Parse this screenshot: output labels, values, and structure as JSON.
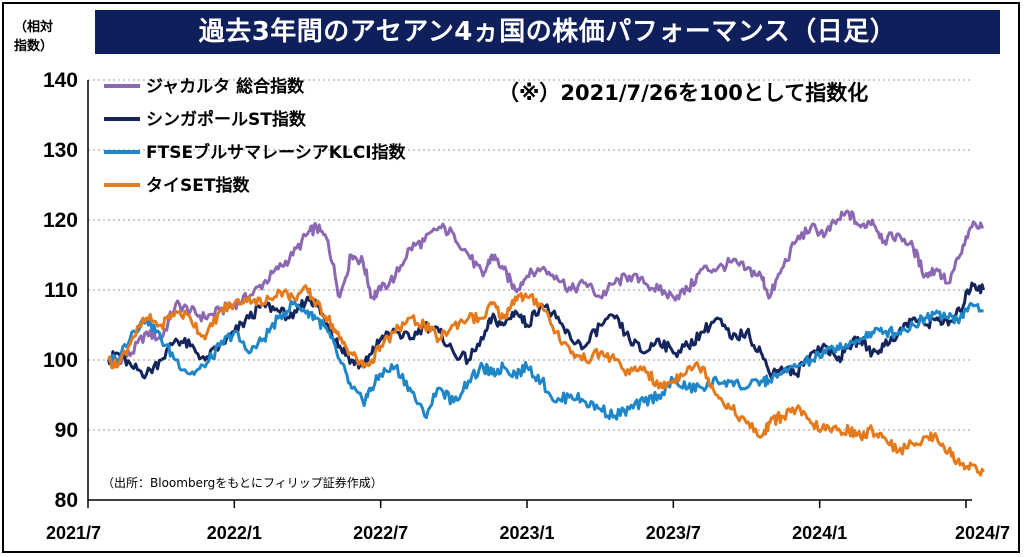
{
  "header": {
    "title": "過去3年間のアセアン4ヵ国の株価パフォーマンス（日足）",
    "unit_line1": "（相対",
    "unit_line2": "指数）",
    "note": "（※）2021/7/26を100として指数化",
    "source": "（出所：Bloombergをもとにフィリップ証券作成）"
  },
  "chart_data": {
    "type": "line",
    "title": "過去3年間のアセアン4ヵ国の株価パフォーマンス（日足）",
    "ylim": [
      80,
      140
    ],
    "yticks": [
      80,
      90,
      100,
      110,
      120,
      130,
      140
    ],
    "xlim": [
      2021.54,
      2024.58
    ],
    "xticks": [
      {
        "label": "2021/7",
        "value": 2021.5
      },
      {
        "label": "2022/1",
        "value": 2022.0
      },
      {
        "label": "2022/7",
        "value": 2022.5
      },
      {
        "label": "2023/1",
        "value": 2023.0
      },
      {
        "label": "2023/7",
        "value": 2023.5
      },
      {
        "label": "2024/1",
        "value": 2024.0
      },
      {
        "label": "2024/7",
        "value": 2024.5
      }
    ],
    "grid": "horizontal dotted",
    "legend_position": "top-left",
    "series": [
      {
        "name": "ジャカルタ 総合指数",
        "color": "#8c68b2",
        "points": [
          [
            2021.57,
            100
          ],
          [
            2021.6,
            100
          ],
          [
            2021.65,
            101
          ],
          [
            2021.7,
            104
          ],
          [
            2021.75,
            103
          ],
          [
            2021.8,
            108
          ],
          [
            2021.85,
            107
          ],
          [
            2021.9,
            106
          ],
          [
            2021.95,
            107
          ],
          [
            2022.0,
            108
          ],
          [
            2022.05,
            109
          ],
          [
            2022.1,
            111
          ],
          [
            2022.15,
            113
          ],
          [
            2022.2,
            115
          ],
          [
            2022.25,
            118
          ],
          [
            2022.28,
            119
          ],
          [
            2022.32,
            117
          ],
          [
            2022.36,
            109
          ],
          [
            2022.4,
            115
          ],
          [
            2022.44,
            114
          ],
          [
            2022.47,
            109
          ],
          [
            2022.5,
            110
          ],
          [
            2022.55,
            112
          ],
          [
            2022.6,
            116
          ],
          [
            2022.65,
            117
          ],
          [
            2022.7,
            119
          ],
          [
            2022.75,
            118
          ],
          [
            2022.8,
            115
          ],
          [
            2022.85,
            112
          ],
          [
            2022.88,
            115
          ],
          [
            2022.92,
            113
          ],
          [
            2022.96,
            110
          ],
          [
            2023.0,
            112
          ],
          [
            2023.05,
            113
          ],
          [
            2023.1,
            112
          ],
          [
            2023.15,
            110
          ],
          [
            2023.2,
            111
          ],
          [
            2023.25,
            109
          ],
          [
            2023.3,
            111
          ],
          [
            2023.35,
            112
          ],
          [
            2023.4,
            111
          ],
          [
            2023.45,
            110
          ],
          [
            2023.5,
            109
          ],
          [
            2023.55,
            110
          ],
          [
            2023.6,
            113
          ],
          [
            2023.65,
            113
          ],
          [
            2023.7,
            114
          ],
          [
            2023.75,
            113
          ],
          [
            2023.8,
            112
          ],
          [
            2023.83,
            109
          ],
          [
            2023.87,
            113
          ],
          [
            2023.92,
            117
          ],
          [
            2023.97,
            119
          ],
          [
            2024.02,
            118
          ],
          [
            2024.06,
            120
          ],
          [
            2024.1,
            121
          ],
          [
            2024.14,
            119
          ],
          [
            2024.18,
            120
          ],
          [
            2024.22,
            117
          ],
          [
            2024.27,
            118
          ],
          [
            2024.32,
            116
          ],
          [
            2024.36,
            112
          ],
          [
            2024.4,
            113
          ],
          [
            2024.44,
            111
          ],
          [
            2024.48,
            115
          ],
          [
            2024.52,
            119
          ],
          [
            2024.56,
            119
          ]
        ]
      },
      {
        "name": "シンガポールST指数",
        "color": "#14255c",
        "points": [
          [
            2021.57,
            100
          ],
          [
            2021.6,
            101
          ],
          [
            2021.65,
            99
          ],
          [
            2021.7,
            98
          ],
          [
            2021.75,
            100
          ],
          [
            2021.8,
            103
          ],
          [
            2021.85,
            102
          ],
          [
            2021.9,
            100
          ],
          [
            2021.95,
            102
          ],
          [
            2022.0,
            104
          ],
          [
            2022.05,
            106
          ],
          [
            2022.1,
            108
          ],
          [
            2022.15,
            107
          ],
          [
            2022.2,
            106
          ],
          [
            2022.25,
            109
          ],
          [
            2022.28,
            108
          ],
          [
            2022.32,
            105
          ],
          [
            2022.36,
            102
          ],
          [
            2022.4,
            100
          ],
          [
            2022.44,
            99
          ],
          [
            2022.47,
            101
          ],
          [
            2022.5,
            103
          ],
          [
            2022.55,
            104
          ],
          [
            2022.6,
            103
          ],
          [
            2022.65,
            105
          ],
          [
            2022.7,
            104
          ],
          [
            2022.75,
            101
          ],
          [
            2022.8,
            100
          ],
          [
            2022.85,
            103
          ],
          [
            2022.88,
            106
          ],
          [
            2022.92,
            105
          ],
          [
            2022.96,
            107
          ],
          [
            2023.0,
            105
          ],
          [
            2023.05,
            108
          ],
          [
            2023.1,
            106
          ],
          [
            2023.15,
            103
          ],
          [
            2023.2,
            102
          ],
          [
            2023.25,
            105
          ],
          [
            2023.3,
            106
          ],
          [
            2023.35,
            103
          ],
          [
            2023.4,
            101
          ],
          [
            2023.45,
            103
          ],
          [
            2023.5,
            101
          ],
          [
            2023.55,
            102
          ],
          [
            2023.6,
            104
          ],
          [
            2023.65,
            106
          ],
          [
            2023.7,
            103
          ],
          [
            2023.75,
            104
          ],
          [
            2023.8,
            101
          ],
          [
            2023.83,
            98
          ],
          [
            2023.87,
            99
          ],
          [
            2023.92,
            98
          ],
          [
            2023.97,
            101
          ],
          [
            2024.02,
            102
          ],
          [
            2024.06,
            100
          ],
          [
            2024.1,
            102
          ],
          [
            2024.14,
            103
          ],
          [
            2024.18,
            101
          ],
          [
            2024.22,
            102
          ],
          [
            2024.27,
            104
          ],
          [
            2024.32,
            106
          ],
          [
            2024.36,
            105
          ],
          [
            2024.4,
            106
          ],
          [
            2024.44,
            105
          ],
          [
            2024.48,
            107
          ],
          [
            2024.52,
            111
          ],
          [
            2024.56,
            110
          ]
        ]
      },
      {
        "name": "FTSEブルサマレーシアKLCI指数",
        "color": "#1f87c8",
        "points": [
          [
            2021.57,
            100
          ],
          [
            2021.6,
            100
          ],
          [
            2021.65,
            104
          ],
          [
            2021.7,
            106
          ],
          [
            2021.75,
            103
          ],
          [
            2021.8,
            100
          ],
          [
            2021.85,
            98
          ],
          [
            2021.9,
            99
          ],
          [
            2021.95,
            102
          ],
          [
            2022.0,
            104
          ],
          [
            2022.05,
            101
          ],
          [
            2022.1,
            103
          ],
          [
            2022.15,
            106
          ],
          [
            2022.2,
            108
          ],
          [
            2022.25,
            107
          ],
          [
            2022.28,
            106
          ],
          [
            2022.32,
            104
          ],
          [
            2022.36,
            100
          ],
          [
            2022.4,
            96
          ],
          [
            2022.44,
            94
          ],
          [
            2022.47,
            96
          ],
          [
            2022.5,
            98
          ],
          [
            2022.55,
            99
          ],
          [
            2022.6,
            96
          ],
          [
            2022.65,
            92
          ],
          [
            2022.7,
            96
          ],
          [
            2022.75,
            94
          ],
          [
            2022.8,
            97
          ],
          [
            2022.85,
            99
          ],
          [
            2022.88,
            98
          ],
          [
            2022.92,
            99
          ],
          [
            2022.96,
            98
          ],
          [
            2023.0,
            99
          ],
          [
            2023.05,
            97
          ],
          [
            2023.1,
            94
          ],
          [
            2023.15,
            95
          ],
          [
            2023.2,
            94
          ],
          [
            2023.25,
            93
          ],
          [
            2023.3,
            92
          ],
          [
            2023.35,
            93
          ],
          [
            2023.4,
            94
          ],
          [
            2023.45,
            95
          ],
          [
            2023.5,
            97
          ],
          [
            2023.55,
            96
          ],
          [
            2023.6,
            96
          ],
          [
            2023.65,
            97
          ],
          [
            2023.7,
            97
          ],
          [
            2023.75,
            96
          ],
          [
            2023.8,
            97
          ],
          [
            2023.83,
            97
          ],
          [
            2023.87,
            98
          ],
          [
            2023.92,
            99
          ],
          [
            2023.97,
            100
          ],
          [
            2024.02,
            101
          ],
          [
            2024.06,
            102
          ],
          [
            2024.1,
            102
          ],
          [
            2024.14,
            103
          ],
          [
            2024.18,
            104
          ],
          [
            2024.22,
            104
          ],
          [
            2024.27,
            104
          ],
          [
            2024.32,
            105
          ],
          [
            2024.36,
            106
          ],
          [
            2024.4,
            107
          ],
          [
            2024.44,
            106
          ],
          [
            2024.48,
            106
          ],
          [
            2024.52,
            108
          ],
          [
            2024.56,
            107
          ]
        ]
      },
      {
        "name": "タイSET指数",
        "color": "#e57a1c",
        "points": [
          [
            2021.57,
            100
          ],
          [
            2021.6,
            99
          ],
          [
            2021.65,
            103
          ],
          [
            2021.7,
            106
          ],
          [
            2021.75,
            105
          ],
          [
            2021.8,
            107
          ],
          [
            2021.85,
            106
          ],
          [
            2021.9,
            103
          ],
          [
            2021.95,
            107
          ],
          [
            2022.0,
            108
          ],
          [
            2022.05,
            109
          ],
          [
            2022.1,
            108
          ],
          [
            2022.15,
            110
          ],
          [
            2022.2,
            109
          ],
          [
            2022.25,
            110
          ],
          [
            2022.28,
            108
          ],
          [
            2022.32,
            106
          ],
          [
            2022.36,
            103
          ],
          [
            2022.4,
            101
          ],
          [
            2022.44,
            99
          ],
          [
            2022.47,
            100
          ],
          [
            2022.5,
            102
          ],
          [
            2022.55,
            104
          ],
          [
            2022.6,
            106
          ],
          [
            2022.65,
            105
          ],
          [
            2022.7,
            103
          ],
          [
            2022.75,
            105
          ],
          [
            2022.8,
            106
          ],
          [
            2022.85,
            106
          ],
          [
            2022.88,
            108
          ],
          [
            2022.92,
            106
          ],
          [
            2022.96,
            109
          ],
          [
            2023.0,
            109
          ],
          [
            2023.05,
            108
          ],
          [
            2023.1,
            104
          ],
          [
            2023.15,
            101
          ],
          [
            2023.2,
            100
          ],
          [
            2023.25,
            101
          ],
          [
            2023.3,
            100
          ],
          [
            2023.35,
            98
          ],
          [
            2023.4,
            99
          ],
          [
            2023.45,
            96
          ],
          [
            2023.5,
            97
          ],
          [
            2023.55,
            99
          ],
          [
            2023.6,
            99
          ],
          [
            2023.65,
            95
          ],
          [
            2023.7,
            93
          ],
          [
            2023.75,
            91
          ],
          [
            2023.8,
            89
          ],
          [
            2023.83,
            91
          ],
          [
            2023.87,
            92
          ],
          [
            2023.92,
            93
          ],
          [
            2023.97,
            91
          ],
          [
            2024.02,
            90
          ],
          [
            2024.06,
            90
          ],
          [
            2024.1,
            90
          ],
          [
            2024.14,
            89
          ],
          [
            2024.18,
            90
          ],
          [
            2024.22,
            89
          ],
          [
            2024.27,
            87
          ],
          [
            2024.32,
            88
          ],
          [
            2024.36,
            89
          ],
          [
            2024.4,
            89
          ],
          [
            2024.44,
            87
          ],
          [
            2024.48,
            85
          ],
          [
            2024.52,
            85
          ],
          [
            2024.56,
            84
          ]
        ]
      }
    ]
  }
}
